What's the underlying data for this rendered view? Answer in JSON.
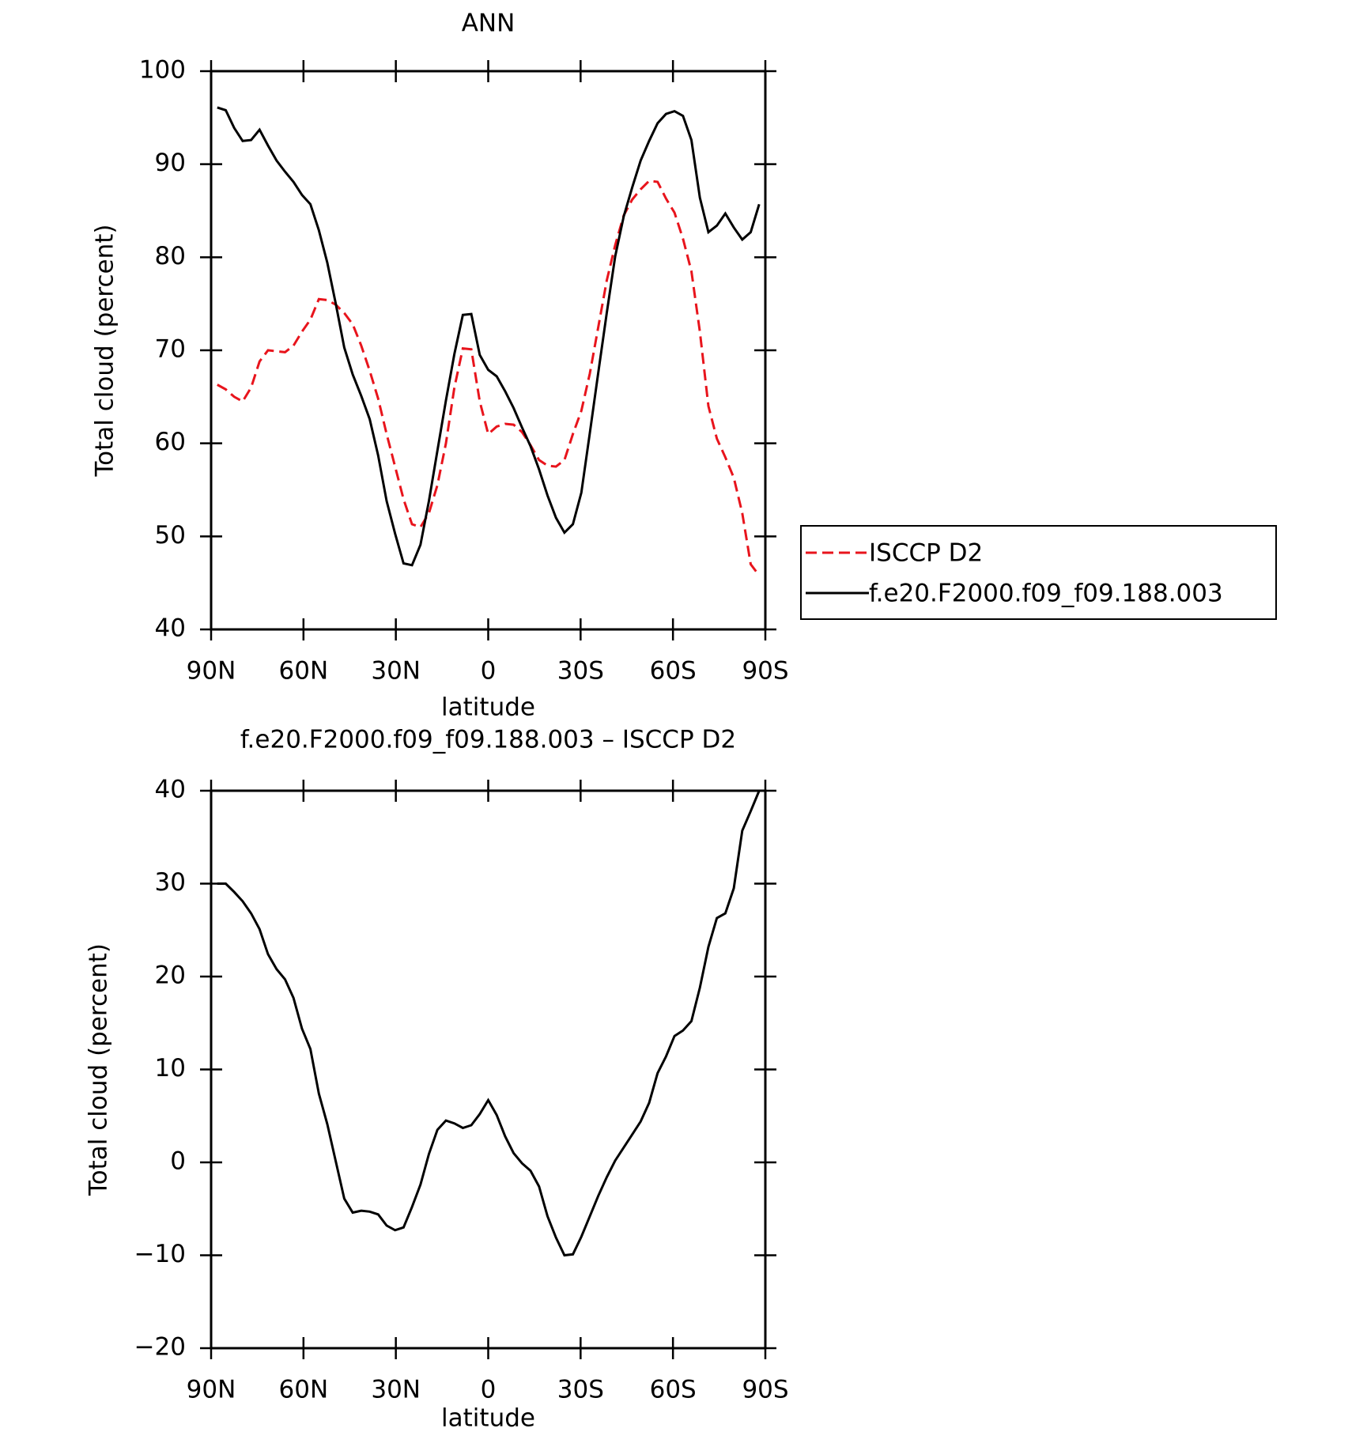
{
  "chart_data": [
    {
      "type": "line",
      "title": "ANN",
      "xlabel": "latitude",
      "ylabel": "Total cloud (percent)",
      "x": [
        88,
        85.25,
        82.5,
        79.75,
        77,
        74.25,
        71.5,
        68.75,
        66,
        63.25,
        60.5,
        57.75,
        55,
        52.25,
        49.5,
        46.75,
        44,
        41.25,
        38.5,
        35.75,
        33,
        30.25,
        27.5,
        24.75,
        22,
        19.25,
        16.5,
        13.75,
        11,
        8.25,
        5.5,
        2.75,
        0,
        -2.75,
        -5.5,
        -8.25,
        -11,
        -13.75,
        -16.5,
        -19.25,
        -22,
        -24.75,
        -27.5,
        -30.25,
        -33,
        -35.75,
        -38.5,
        -41.25,
        -44,
        -46.75,
        -49.5,
        -52.25,
        -55,
        -57.75,
        -60.5,
        -63.25,
        -66,
        -68.75,
        -71.5,
        -74.25,
        -77,
        -79.75,
        -82.5,
        -85.25,
        -88
      ],
      "series": [
        {
          "name": "ISCCP D2",
          "color": "#e8141c",
          "dashed": true,
          "values": [
            66.3,
            65.8,
            65.0,
            64.5,
            66.0,
            68.8,
            70.0,
            69.9,
            69.8,
            70.5,
            72.0,
            73.3,
            75.5,
            75.4,
            74.9,
            74.0,
            72.8,
            70.5,
            67.8,
            64.8,
            61.0,
            57.5,
            54.0,
            51.3,
            51.0,
            52.5,
            55.5,
            60.0,
            66.0,
            70.2,
            70.1,
            64.5,
            61.0,
            61.8,
            62.1,
            62.0,
            61.2,
            59.8,
            58.2,
            57.6,
            57.5,
            58.2,
            61.0,
            63.5,
            67.5,
            72.5,
            77.5,
            81.3,
            84.5,
            86.2,
            87.3,
            88.2,
            88.1,
            86.3,
            84.8,
            82.0,
            78.5,
            72.0,
            64.0,
            60.5,
            58.5,
            56.3,
            52.5,
            47.0,
            45.8
          ]
        },
        {
          "name": "f.e20.F2000.f09_f09.188.003",
          "color": "#000000",
          "dashed": false,
          "values": [
            96.1,
            95.8,
            93.9,
            92.5,
            92.6,
            93.7,
            92.0,
            90.4,
            89.2,
            88.1,
            86.7,
            85.7,
            82.9,
            79.4,
            75.0,
            70.3,
            67.4,
            65.1,
            62.6,
            58.7,
            53.8,
            50.3,
            47.1,
            46.9,
            49.1,
            53.8,
            59.2,
            64.6,
            69.6,
            73.8,
            73.9,
            69.5,
            67.9,
            67.2,
            65.6,
            63.8,
            61.7,
            59.7,
            57.2,
            54.4,
            52.0,
            50.4,
            51.3,
            54.7,
            61.1,
            67.6,
            74.0,
            80.1,
            84.4,
            87.5,
            90.4,
            92.5,
            94.4,
            95.4,
            95.7,
            95.2,
            92.6,
            86.4,
            82.7,
            83.4,
            84.7,
            83.2,
            81.9,
            82.7,
            85.7
          ]
        }
      ],
      "xlim": [
        90,
        -90
      ],
      "xticks": [
        {
          "value": 90,
          "label": "90N"
        },
        {
          "value": 60,
          "label": "60N"
        },
        {
          "value": 30,
          "label": "30N"
        },
        0,
        {
          "value": -30,
          "label": "30S"
        },
        {
          "value": -60,
          "label": "60S"
        },
        {
          "value": -90,
          "label": "90S"
        }
      ],
      "ylim": [
        40,
        100
      ],
      "yticks": [
        40,
        50,
        60,
        70,
        80,
        90,
        100
      ],
      "legend": "right"
    },
    {
      "type": "line",
      "title": "f.e20.F2000.f09_f09.188.003 – ISCCP D2",
      "xlabel": "latitude",
      "ylabel": "Total cloud (percent)",
      "x": [
        88,
        85.25,
        82.5,
        79.75,
        77,
        74.25,
        71.5,
        68.75,
        66,
        63.25,
        60.5,
        57.75,
        55,
        52.25,
        49.5,
        46.75,
        44,
        41.25,
        38.5,
        35.75,
        33,
        30.25,
        27.5,
        24.75,
        22,
        19.25,
        16.5,
        13.75,
        11,
        8.25,
        5.5,
        2.75,
        0,
        -2.75,
        -5.5,
        -8.25,
        -11,
        -13.75,
        -16.5,
        -19.25,
        -22,
        -24.75,
        -27.5,
        -30.25,
        -33,
        -35.75,
        -38.5,
        -41.25,
        -44,
        -46.75,
        -49.5,
        -52.25,
        -55,
        -57.75,
        -60.5,
        -63.25,
        -66,
        -68.75,
        -71.5,
        -74.25,
        -77,
        -79.75,
        -82.5,
        -85.25,
        -88
      ],
      "series": [
        {
          "color": "#000000",
          "dashed": false,
          "values": [
            30.0,
            30.0,
            29.1,
            28.1,
            26.8,
            25.1,
            22.4,
            20.8,
            19.7,
            17.7,
            14.4,
            12.2,
            7.4,
            4.1,
            0.1,
            -3.9,
            -5.4,
            -5.2,
            -5.3,
            -5.6,
            -6.8,
            -7.3,
            -7.0,
            -4.8,
            -2.4,
            0.9,
            3.5,
            4.5,
            4.2,
            3.7,
            4.0,
            5.2,
            6.7,
            5.1,
            2.8,
            1.0,
            -0.1,
            -0.9,
            -2.6,
            -5.8,
            -8.1,
            -10.0,
            -9.9,
            -8.0,
            -5.8,
            -3.6,
            -1.6,
            0.2,
            1.6,
            3.0,
            4.4,
            6.4,
            9.6,
            11.4,
            13.6,
            14.2,
            15.2,
            18.8,
            23.2,
            26.3,
            26.8,
            29.5,
            35.7,
            37.8,
            40.0
          ]
        }
      ],
      "xlim": [
        90,
        -90
      ],
      "xticks": [
        {
          "value": 90,
          "label": "90N"
        },
        {
          "value": 60,
          "label": "60N"
        },
        {
          "value": 30,
          "label": "30N"
        },
        0,
        {
          "value": -30,
          "label": "30S"
        },
        {
          "value": -60,
          "label": "60S"
        },
        {
          "value": -90,
          "label": "90S"
        }
      ],
      "ylim": [
        -20,
        40
      ],
      "yticks": [
        {
          "value": -20,
          "label": "−20"
        },
        {
          "value": -10,
          "label": "−10"
        },
        0,
        10,
        20,
        30,
        40
      ]
    }
  ]
}
